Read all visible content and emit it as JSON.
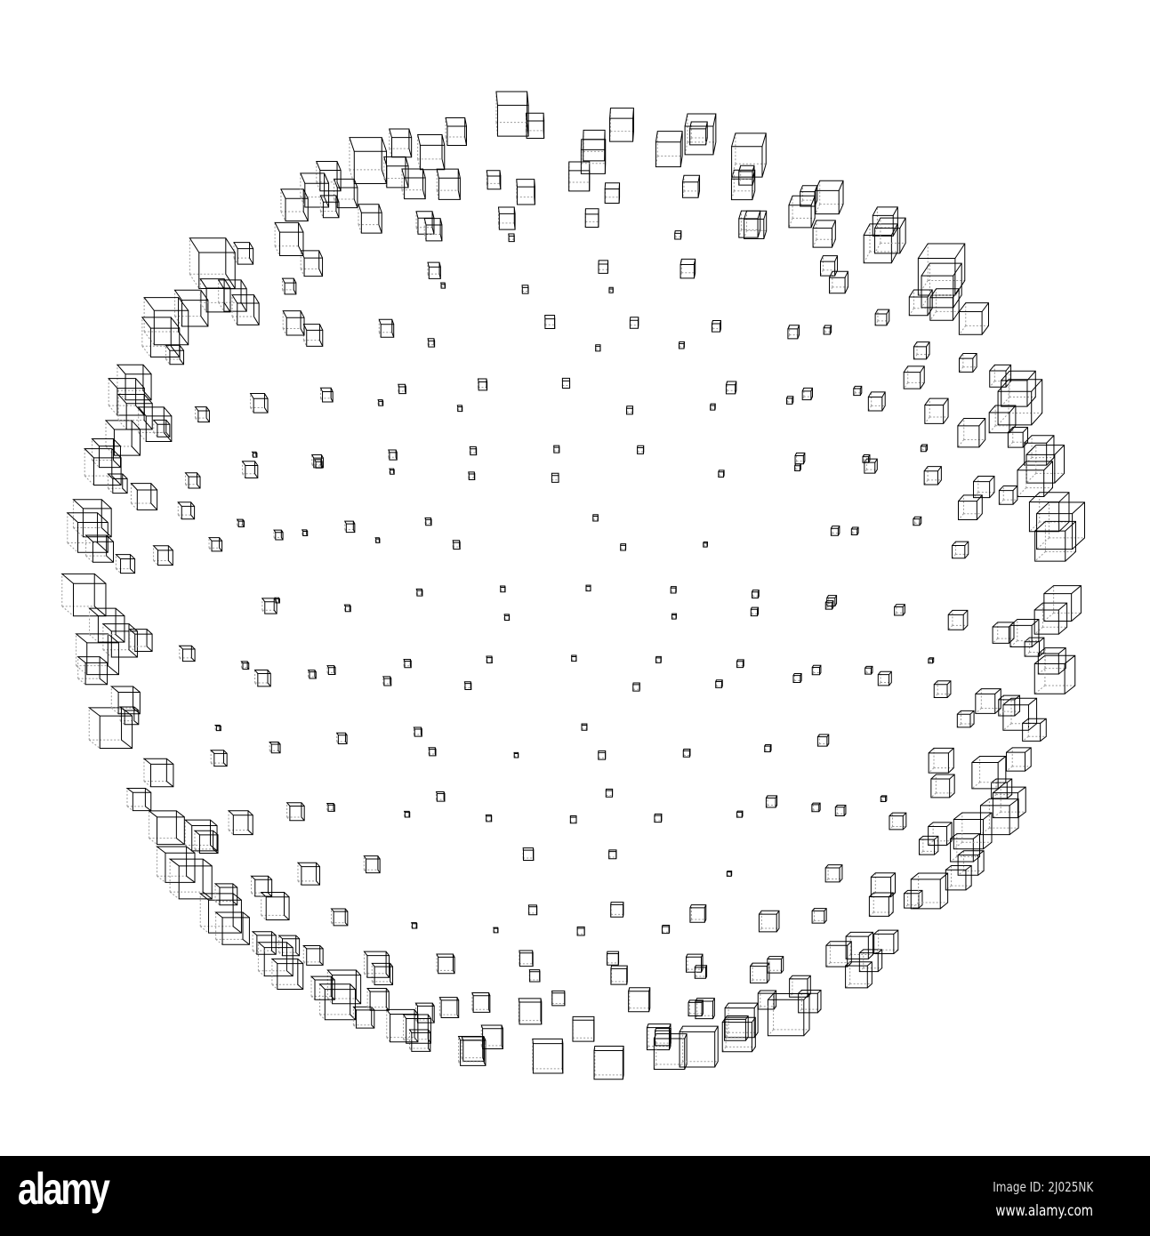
{
  "image": {
    "subject": "wireframe cubes arranged on a sphere",
    "line_color": "#000000",
    "hidden_edge_color": "#9a9a9a",
    "background": "#ffffff"
  },
  "footer": {
    "logo": "alamy",
    "image_id": "Image ID: 2J025NK",
    "website": "www.alamy.com",
    "background": "#000000"
  }
}
